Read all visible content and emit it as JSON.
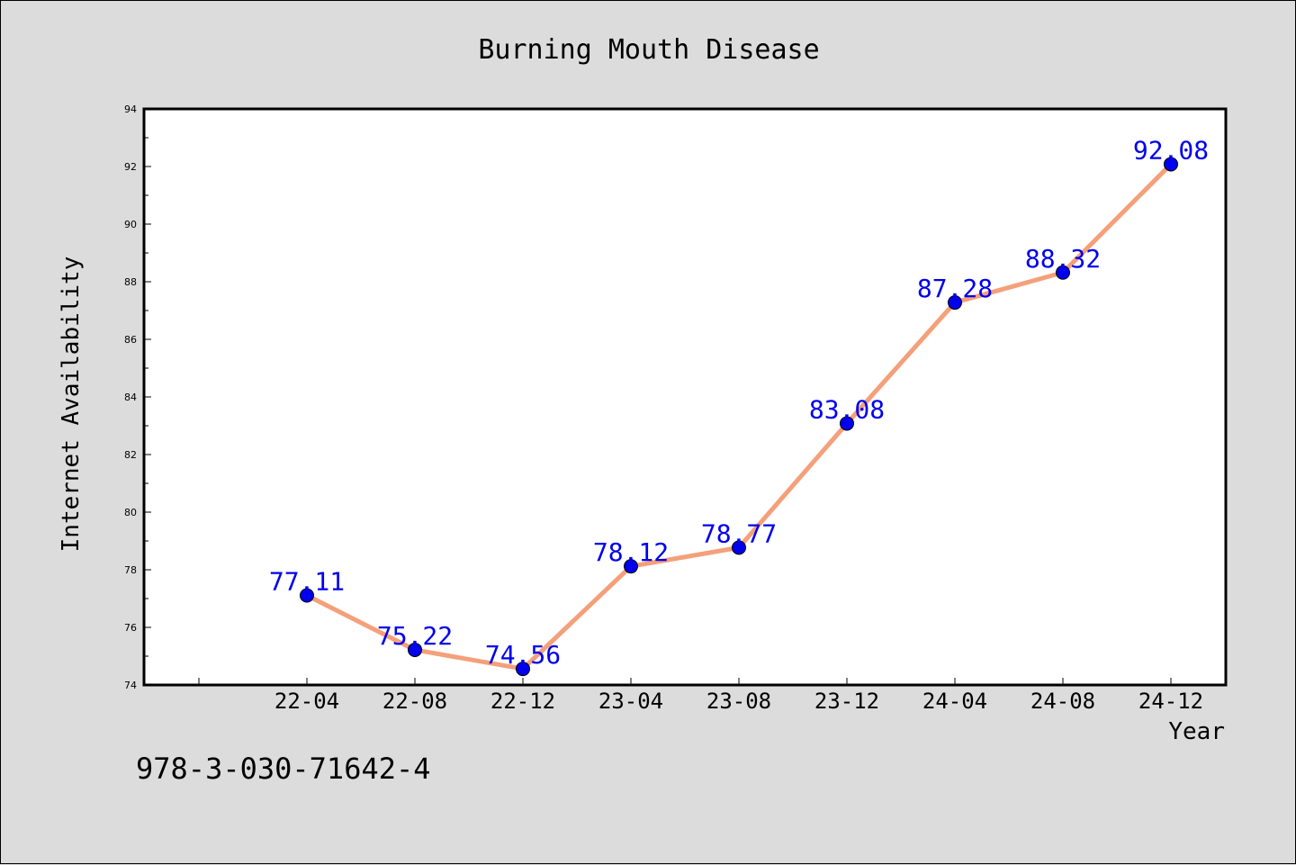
{
  "chart_data": {
    "type": "line",
    "title": "Burning Mouth Disease",
    "xlabel": "Year",
    "ylabel": "Internet Availability",
    "categories": [
      "22-04",
      "22-08",
      "22-12",
      "23-04",
      "23-08",
      "23-12",
      "24-04",
      "24-08",
      "24-12"
    ],
    "series": [
      {
        "values": [
          77.11,
          75.22,
          74.56,
          78.12,
          78.77,
          83.08,
          87.28,
          88.32,
          92.08
        ],
        "line_color": "#f4a07a",
        "marker_color": "#0000ee",
        "label_color": "#0000ee"
      }
    ],
    "ylim": [
      74,
      94
    ],
    "y_ticks": [
      74,
      76,
      78,
      80,
      82,
      84,
      86,
      88,
      90,
      92,
      94
    ],
    "grid": false,
    "data_labels": [
      "77.11",
      "75.22",
      "74.56",
      "78.12",
      "78.77",
      "83.08",
      "87.28",
      "88.32",
      "92.08"
    ]
  },
  "footer": {
    "code": "978-3-030-71642-4"
  }
}
